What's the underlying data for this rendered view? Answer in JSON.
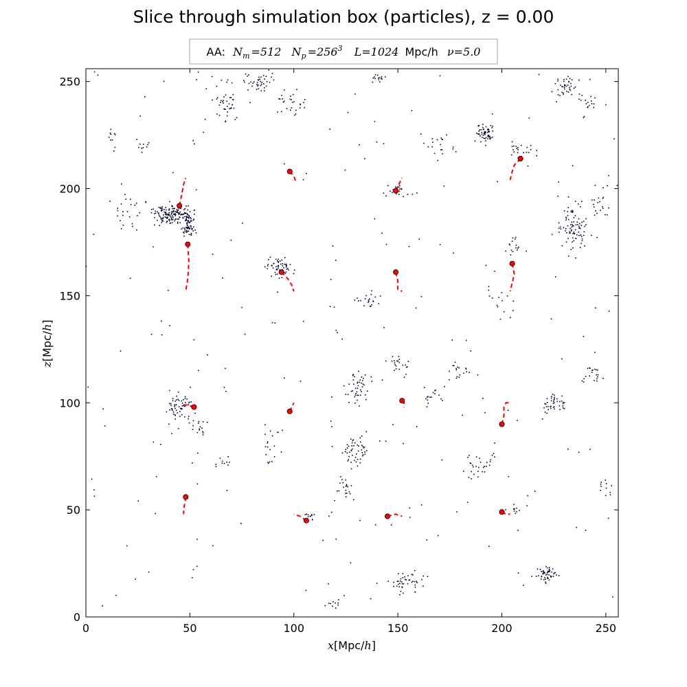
{
  "chart_data": {
    "type": "scatter",
    "title": "Slice through simulation box (particles), z = 0.00",
    "legend": {
      "placement": "top-center",
      "prefix": "AA:",
      "nm_label": "N",
      "nm_sub": "m",
      "nm_value": "=512",
      "np_label": "N",
      "np_sub": "p",
      "np_value": "=256",
      "np_exp": "3",
      "l_label": "L",
      "l_value": "=1024",
      "l_unit": "Mpc/h",
      "nu_label": "ν",
      "nu_value": "=5.0"
    },
    "xlabel": {
      "var": "x",
      "unit": "[Mpc/",
      "unit_var": "h",
      "close": "]"
    },
    "ylabel": {
      "var": "z",
      "unit": "[Mpc/",
      "unit_var": "h",
      "close": "]"
    },
    "xlim": [
      0,
      256
    ],
    "ylim": [
      0,
      256
    ],
    "xticks": [
      "0",
      "50",
      "100",
      "150",
      "200",
      "250"
    ],
    "yticks": [
      "0",
      "50",
      "100",
      "150",
      "200",
      "250"
    ],
    "xtick_values": [
      0,
      50,
      100,
      150,
      200,
      250
    ],
    "ytick_values": [
      0,
      50,
      100,
      150,
      200,
      250
    ],
    "grid": false,
    "particle_color": "#000033",
    "halo_color": "#ff0000",
    "particle_clusters": [
      {
        "x": 40,
        "y": 188,
        "n": 140,
        "sx": 8,
        "sy": 4
      },
      {
        "x": 49,
        "y": 185,
        "n": 80,
        "sx": 3,
        "sy": 6
      },
      {
        "x": 20,
        "y": 190,
        "n": 25,
        "sx": 8,
        "sy": 8
      },
      {
        "x": 67,
        "y": 240,
        "n": 40,
        "sx": 5,
        "sy": 8
      },
      {
        "x": 84,
        "y": 250,
        "n": 40,
        "sx": 6,
        "sy": 4
      },
      {
        "x": 98,
        "y": 240,
        "n": 25,
        "sx": 6,
        "sy": 6
      },
      {
        "x": 28,
        "y": 220,
        "n": 10,
        "sx": 3,
        "sy": 3
      },
      {
        "x": 13,
        "y": 222,
        "n": 10,
        "sx": 3,
        "sy": 4
      },
      {
        "x": 192,
        "y": 226,
        "n": 60,
        "sx": 4,
        "sy": 4
      },
      {
        "x": 231,
        "y": 248,
        "n": 40,
        "sx": 5,
        "sy": 5
      },
      {
        "x": 241,
        "y": 240,
        "n": 15,
        "sx": 5,
        "sy": 4
      },
      {
        "x": 210,
        "y": 218,
        "n": 20,
        "sx": 6,
        "sy": 3
      },
      {
        "x": 234,
        "y": 183,
        "n": 90,
        "sx": 7,
        "sy": 10
      },
      {
        "x": 247,
        "y": 193,
        "n": 20,
        "sx": 4,
        "sy": 8
      },
      {
        "x": 205,
        "y": 174,
        "n": 15,
        "sx": 3,
        "sy": 4
      },
      {
        "x": 93,
        "y": 163,
        "n": 60,
        "sx": 5,
        "sy": 4
      },
      {
        "x": 151,
        "y": 199,
        "n": 20,
        "sx": 6,
        "sy": 3
      },
      {
        "x": 136,
        "y": 148,
        "n": 20,
        "sx": 5,
        "sy": 4
      },
      {
        "x": 130,
        "y": 107,
        "n": 45,
        "sx": 5,
        "sy": 7
      },
      {
        "x": 150,
        "y": 118,
        "n": 20,
        "sx": 5,
        "sy": 4
      },
      {
        "x": 130,
        "y": 78,
        "n": 50,
        "sx": 5,
        "sy": 6
      },
      {
        "x": 125,
        "y": 60,
        "n": 20,
        "sx": 4,
        "sy": 5
      },
      {
        "x": 45,
        "y": 98,
        "n": 60,
        "sx": 6,
        "sy": 6
      },
      {
        "x": 55,
        "y": 88,
        "n": 15,
        "sx": 4,
        "sy": 3
      },
      {
        "x": 65,
        "y": 72,
        "n": 10,
        "sx": 4,
        "sy": 2
      },
      {
        "x": 225,
        "y": 100,
        "n": 40,
        "sx": 5,
        "sy": 4
      },
      {
        "x": 244,
        "y": 113,
        "n": 20,
        "sx": 4,
        "sy": 5
      },
      {
        "x": 190,
        "y": 70,
        "n": 30,
        "sx": 8,
        "sy": 5
      },
      {
        "x": 222,
        "y": 20,
        "n": 50,
        "sx": 4,
        "sy": 3
      },
      {
        "x": 155,
        "y": 17,
        "n": 45,
        "sx": 7,
        "sy": 5
      },
      {
        "x": 108,
        "y": 47,
        "n": 10,
        "sx": 3,
        "sy": 2
      },
      {
        "x": 166,
        "y": 103,
        "n": 15,
        "sx": 5,
        "sy": 4
      },
      {
        "x": 180,
        "y": 115,
        "n": 15,
        "sx": 4,
        "sy": 3
      },
      {
        "x": 120,
        "y": 6,
        "n": 10,
        "sx": 4,
        "sy": 2
      },
      {
        "x": 140,
        "y": 252,
        "n": 15,
        "sx": 3,
        "sy": 2
      },
      {
        "x": 170,
        "y": 220,
        "n": 20,
        "sx": 8,
        "sy": 5
      },
      {
        "x": 200,
        "y": 145,
        "n": 10,
        "sx": 5,
        "sy": 8
      },
      {
        "x": 89,
        "y": 80,
        "n": 20,
        "sx": 4,
        "sy": 8
      },
      {
        "x": 205,
        "y": 50,
        "n": 10,
        "sx": 4,
        "sy": 3
      },
      {
        "x": 250,
        "y": 60,
        "n": 10,
        "sx": 3,
        "sy": 5
      }
    ],
    "background_particles": 220,
    "halos": [
      {
        "x": 45,
        "y": 192,
        "track": [
          [
            45,
            192
          ],
          [
            46,
            197
          ],
          [
            47,
            202
          ],
          [
            48,
            205
          ]
        ]
      },
      {
        "x": 49,
        "y": 174,
        "track": [
          [
            49,
            174
          ],
          [
            49.5,
            166
          ],
          [
            49,
            158
          ],
          [
            48,
            152
          ]
        ]
      },
      {
        "x": 98,
        "y": 208,
        "track": [
          [
            98,
            208
          ],
          [
            100,
            206
          ],
          [
            101,
            203
          ]
        ]
      },
      {
        "x": 149,
        "y": 199,
        "track": [
          [
            149,
            199
          ],
          [
            150,
            201
          ],
          [
            151,
            203
          ],
          [
            152,
            205
          ]
        ]
      },
      {
        "x": 209,
        "y": 214,
        "track": [
          [
            209,
            214
          ],
          [
            206,
            211
          ],
          [
            205,
            208
          ],
          [
            204,
            204
          ]
        ]
      },
      {
        "x": 94,
        "y": 161,
        "track": [
          [
            94,
            161
          ],
          [
            97,
            158
          ],
          [
            99,
            155
          ],
          [
            100,
            152
          ]
        ]
      },
      {
        "x": 149,
        "y": 161,
        "track": [
          [
            149,
            161
          ],
          [
            150,
            157
          ],
          [
            150,
            153
          ],
          [
            152,
            152
          ]
        ]
      },
      {
        "x": 205,
        "y": 165,
        "track": [
          [
            205,
            165
          ],
          [
            206,
            160
          ],
          [
            205,
            156
          ],
          [
            204,
            152
          ]
        ]
      },
      {
        "x": 52,
        "y": 98,
        "track": [
          [
            52,
            98
          ],
          [
            49,
            99
          ],
          [
            47,
            99
          ]
        ]
      },
      {
        "x": 98,
        "y": 96,
        "track": [
          [
            98,
            96
          ],
          [
            99,
            98
          ],
          [
            100,
            100
          ]
        ]
      },
      {
        "x": 152,
        "y": 101,
        "track": [
          [
            152,
            101
          ],
          [
            153,
            100
          ],
          [
            153,
            98
          ]
        ]
      },
      {
        "x": 200,
        "y": 90,
        "track": [
          [
            200,
            90
          ],
          [
            201,
            94
          ],
          [
            201,
            98
          ],
          [
            202,
            100
          ],
          [
            204,
            100
          ]
        ]
      },
      {
        "x": 48,
        "y": 56,
        "track": [
          [
            48,
            56
          ],
          [
            47.5,
            53
          ],
          [
            47,
            50
          ],
          [
            47,
            48
          ]
        ]
      },
      {
        "x": 106,
        "y": 45,
        "track": [
          [
            106,
            45
          ],
          [
            103,
            47
          ],
          [
            100,
            48
          ]
        ]
      },
      {
        "x": 145,
        "y": 47,
        "track": [
          [
            145,
            47
          ],
          [
            149,
            48
          ],
          [
            152,
            47
          ]
        ]
      },
      {
        "x": 200,
        "y": 49,
        "track": [
          [
            200,
            49
          ],
          [
            202,
            48
          ],
          [
            204,
            48
          ]
        ]
      }
    ]
  }
}
